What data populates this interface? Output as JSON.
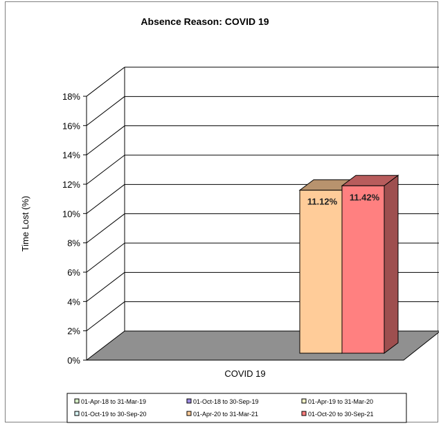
{
  "chart_data": {
    "type": "bar",
    "title": "Absence Reason: COVID 19",
    "ylabel": "Time Lost (%)",
    "xlabel": "",
    "categories": [
      "COVID 19"
    ],
    "ylim": [
      0,
      18
    ],
    "yticks": [
      "0%",
      "2%",
      "4%",
      "6%",
      "8%",
      "10%",
      "12%",
      "14%",
      "16%",
      "18%"
    ],
    "grid": true,
    "legend_position": "bottom",
    "series": [
      {
        "name": "01-Apr-18 to 31-Mar-19",
        "values": [
          null
        ],
        "color": "#d8f0c8"
      },
      {
        "name": "01-Oct-18 to 30-Sep-19",
        "values": [
          null
        ],
        "color": "#9c8ce0"
      },
      {
        "name": "01-Apr-19 to 31-Mar-20",
        "values": [
          null
        ],
        "color": "#f4f4c8"
      },
      {
        "name": "01-Oct-19 to 30-Sep-20",
        "values": [
          null
        ],
        "color": "#d8f4f4"
      },
      {
        "name": "01-Apr-20 to 31-Mar-21",
        "values": [
          11.12
        ],
        "label": "11.12%",
        "color": "#ffcc99"
      },
      {
        "name": "01-Oct-20 to 30-Sep-21",
        "values": [
          11.42
        ],
        "label": "11.42%",
        "color": "#ff8080"
      }
    ]
  }
}
